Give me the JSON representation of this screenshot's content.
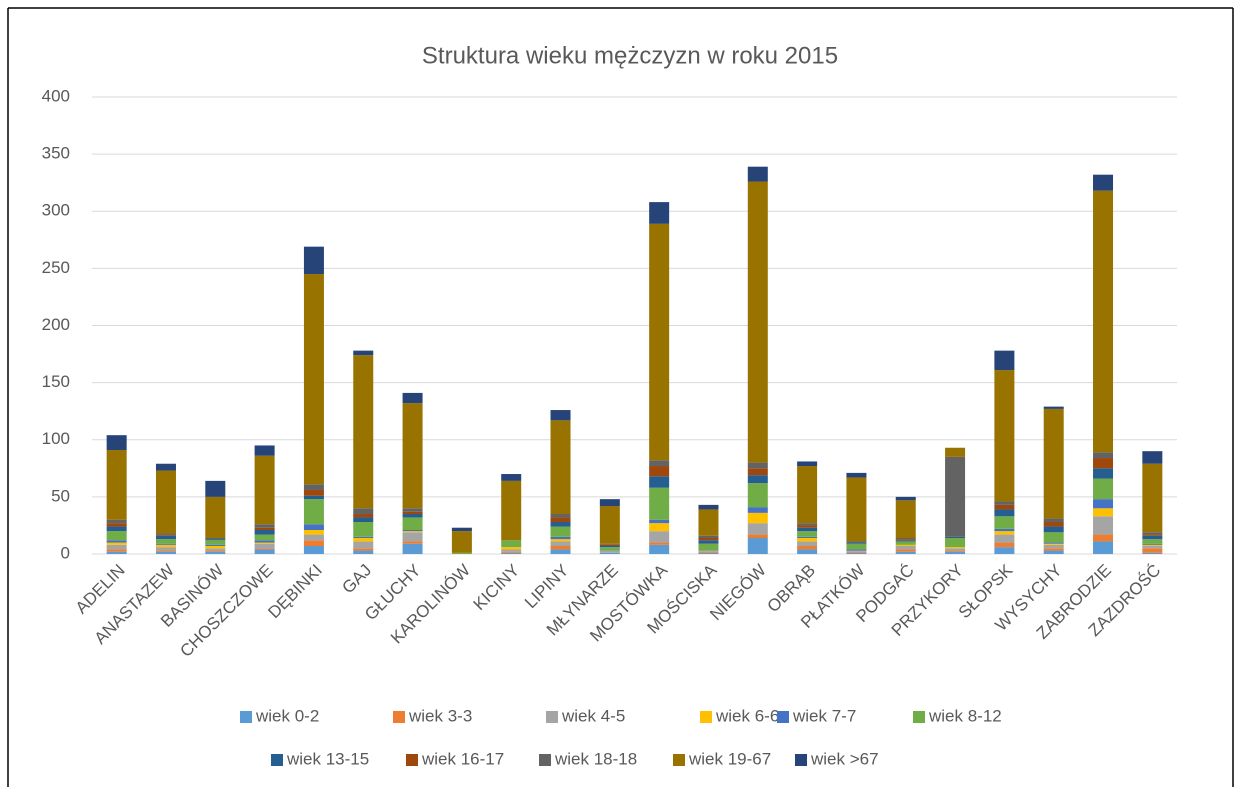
{
  "chart_data": {
    "type": "stacked_bar",
    "title": "Struktura wieku mężczyzn w roku 2015",
    "categories": [
      "ADELIN",
      "ANASTAZEW",
      "BASINÓW",
      "CHOSZCZOWE",
      "DĘBINKI",
      "GAJ",
      "GŁUCHY",
      "KAROLINÓW",
      "KICINY",
      "LIPINY",
      "MŁYNARZE",
      "MOSTÓWKA",
      "MOŚCISKA",
      "NIEGÓW",
      "OBRĄB",
      "PŁATKÓW",
      "PODGAĆ",
      "PRZYKORY",
      "SŁOPSK",
      "WYSYCHY",
      "ZABRODZIE",
      "ZAZDROŚĆ"
    ],
    "series": [
      {
        "name": "wiek 0-2",
        "color": "#5b9bd5",
        "values": [
          2,
          2,
          2,
          4,
          7,
          3,
          9,
          0,
          1,
          4,
          1,
          8,
          1,
          14,
          4,
          1,
          2,
          2,
          6,
          3,
          11,
          1
        ]
      },
      {
        "name": "wiek 3-3",
        "color": "#ed7d31",
        "values": [
          2,
          1,
          1,
          1,
          5,
          2,
          2,
          0,
          1,
          3,
          0,
          2,
          1,
          3,
          3,
          1,
          2,
          1,
          4,
          2,
          6,
          4
        ]
      },
      {
        "name": "wiek 4-5",
        "color": "#a5a5a5",
        "values": [
          4,
          3,
          2,
          4,
          5,
          6,
          8,
          0,
          2,
          4,
          2,
          10,
          1,
          10,
          4,
          1,
          3,
          2,
          7,
          3,
          16,
          2
        ]
      },
      {
        "name": "wiek 6-6",
        "color": "#ffc000",
        "values": [
          2,
          2,
          2,
          1,
          4,
          3,
          1,
          0,
          2,
          2,
          0,
          7,
          0,
          9,
          3,
          0,
          1,
          1,
          3,
          1,
          7,
          1
        ]
      },
      {
        "name": "wiek 7-7",
        "color": "#4472c4",
        "values": [
          2,
          1,
          1,
          2,
          5,
          1,
          1,
          0,
          0,
          2,
          0,
          3,
          0,
          5,
          1,
          1,
          0,
          0,
          2,
          1,
          8,
          1
        ]
      },
      {
        "name": "wiek 8-12",
        "color": "#70ad47",
        "values": [
          8,
          4,
          4,
          5,
          22,
          13,
          11,
          1,
          6,
          9,
          3,
          28,
          6,
          21,
          5,
          5,
          3,
          8,
          11,
          9,
          18,
          4
        ]
      },
      {
        "name": "wiek 13-15",
        "color": "#255e91",
        "values": [
          4,
          3,
          1,
          4,
          3,
          4,
          3,
          0,
          0,
          4,
          1,
          10,
          3,
          7,
          3,
          1,
          1,
          1,
          6,
          5,
          9,
          3
        ]
      },
      {
        "name": "wiek 16-17",
        "color": "#9e480e",
        "values": [
          3,
          1,
          0,
          2,
          5,
          3,
          2,
          0,
          0,
          4,
          1,
          9,
          2,
          6,
          2,
          0,
          1,
          0,
          4,
          4,
          9,
          1
        ]
      },
      {
        "name": "wiek 18-18",
        "color": "#636363",
        "values": [
          3,
          1,
          1,
          3,
          5,
          5,
          3,
          0,
          0,
          3,
          1,
          5,
          2,
          5,
          2,
          1,
          1,
          70,
          3,
          3,
          5,
          2
        ]
      },
      {
        "name": "wiek 19-67",
        "color": "#997300",
        "values": [
          61,
          55,
          36,
          60,
          184,
          134,
          92,
          19,
          52,
          82,
          33,
          207,
          23,
          246,
          50,
          56,
          33,
          8,
          115,
          96,
          229,
          60
        ]
      },
      {
        "name": "wiek >67",
        "color": "#264478",
        "values": [
          13,
          6,
          14,
          9,
          24,
          4,
          9,
          3,
          6,
          9,
          6,
          19,
          4,
          13,
          4,
          4,
          3,
          0,
          17,
          2,
          14,
          11
        ]
      }
    ],
    "ylim": [
      0,
      400
    ],
    "yticks": [
      0,
      50,
      100,
      150,
      200,
      250,
      300,
      350,
      400
    ],
    "grid": true,
    "legend": "bottom"
  }
}
